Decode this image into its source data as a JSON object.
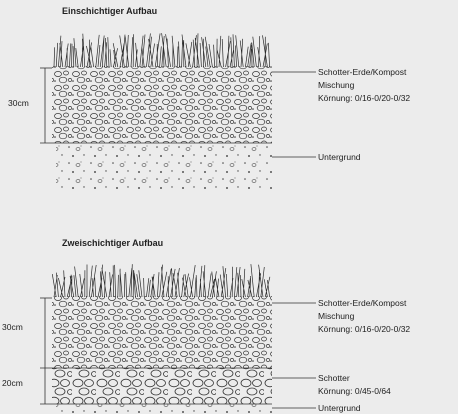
{
  "sections": [
    {
      "title": "Einschichtiger Aufbau",
      "dimensions": [
        "30cm"
      ],
      "layers": [
        {
          "lines": [
            "Schotter-Erde/Kompost",
            "Mischung",
            "Körnung: 0/16-0/20-0/32"
          ]
        },
        {
          "lines": [
            "Untergrund"
          ]
        }
      ]
    },
    {
      "title": "Zweischichtiger Aufbau",
      "dimensions": [
        "30cm",
        "20cm"
      ],
      "layers": [
        {
          "lines": [
            "Schotter-Erde/Kompost",
            "Mischung",
            "Körnung: 0/16-0/20-0/32"
          ]
        },
        {
          "lines": [
            "Schotter",
            "Körnung: 0/45-0/64"
          ]
        },
        {
          "lines": [
            "Untergrund"
          ]
        }
      ]
    }
  ]
}
